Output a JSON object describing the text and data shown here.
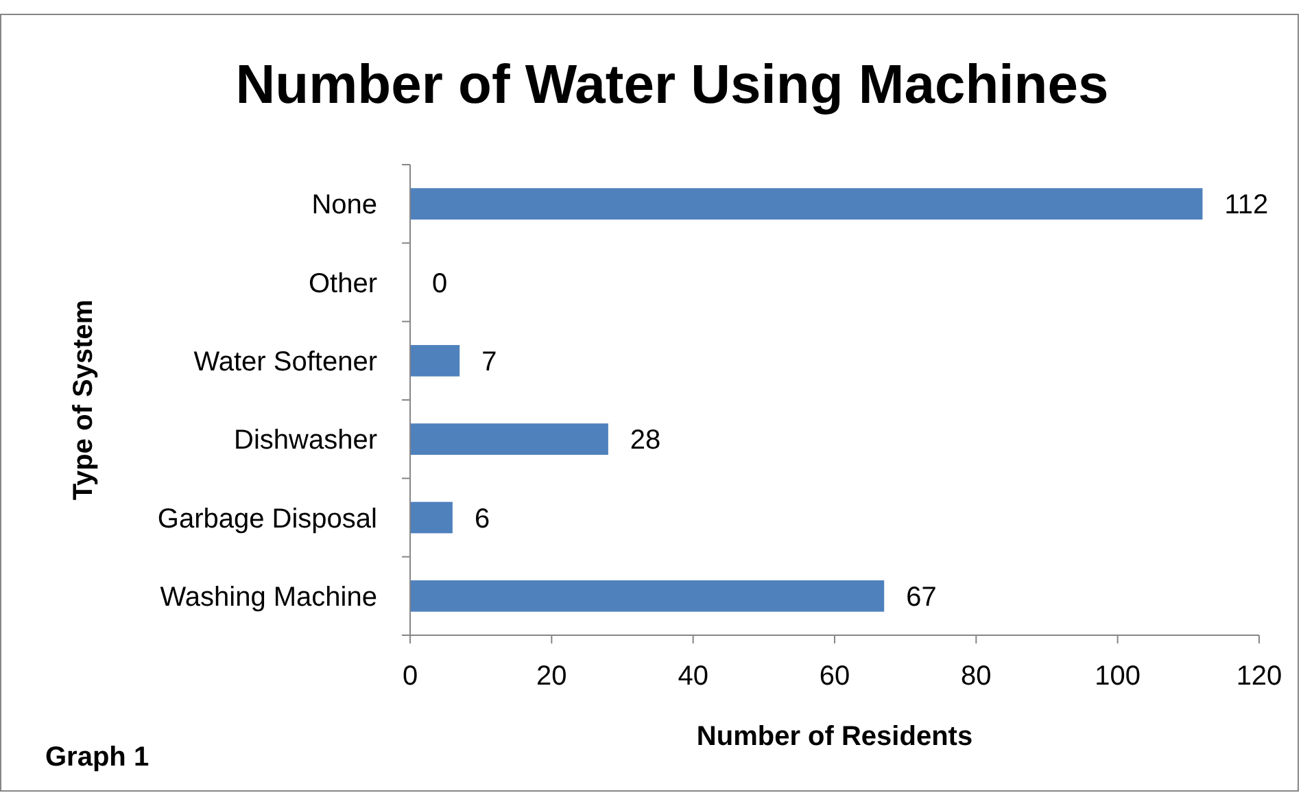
{
  "chart_data": {
    "type": "bar",
    "orientation": "horizontal",
    "title": "Number of Water Using Machines",
    "xlabel": "Number of Residents",
    "ylabel": "Type of System",
    "categories": [
      "None",
      "Other",
      "Water Softener",
      "Dishwasher",
      "Garbage Disposal",
      "Washing Machine"
    ],
    "values": [
      112,
      0,
      7,
      28,
      6,
      67
    ],
    "color": "#4f81bd",
    "data_labels": true,
    "xlim": [
      0,
      120
    ],
    "xticks": [
      0,
      20,
      40,
      60,
      80,
      100,
      120
    ],
    "grid": false,
    "annotations": [
      "Graph 1"
    ]
  }
}
